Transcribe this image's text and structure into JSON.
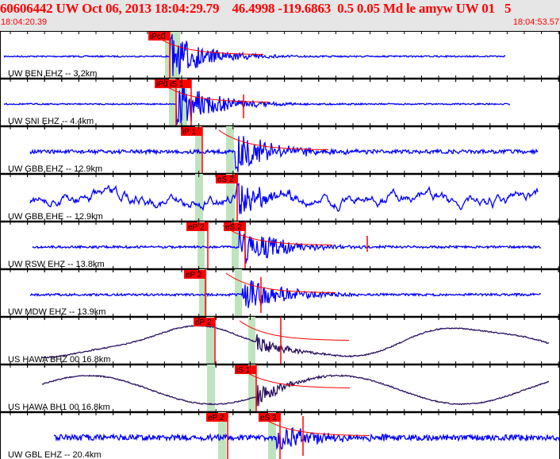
{
  "header": {
    "title": "60606442 UW Oct 06, 2013 18:04:29.79    46.4998 -119.6863  0.5 0.05 Md le amyw UW 01   5",
    "start_time": "18:04:20.39",
    "end_time": "18:04:53.57"
  },
  "colors": {
    "text_red": "#ff0000",
    "trace_blue": "#0000ff",
    "trace_purple": "#2a1060",
    "pick_box": "#ff0000",
    "pick_window": "#bfe3bf"
  },
  "channels": [
    {
      "label": "UW BEN EHZ -- 3.2km",
      "picks": [
        "iPc0"
      ]
    },
    {
      "label": "UW SNI EHZ -- 4.4km",
      "picks": [
        "iPd iS 1"
      ]
    },
    {
      "label": "UW GBB EHZ -- 12.9km",
      "picks": [
        "iP 1"
      ]
    },
    {
      "label": "UW GBB EHE -- 12.9km",
      "picks": [
        "eS 2"
      ]
    },
    {
      "label": "UW RSW EHZ -- 13.8km",
      "picks": [
        "eP 2",
        "eS 2"
      ]
    },
    {
      "label": "UW MDW EHZ -- 13.9km",
      "picks": [
        "eP 2"
      ]
    },
    {
      "label": "US HAWA BHZ 00 16.8km",
      "picks": [
        "eP 2"
      ]
    },
    {
      "label": "US HAWA BH1 00 16.8km",
      "picks": [
        "iS 1"
      ]
    },
    {
      "label": "UW GBL EHZ -- 20.4km",
      "picks": [
        "eP 2",
        "eS 2"
      ]
    }
  ]
}
